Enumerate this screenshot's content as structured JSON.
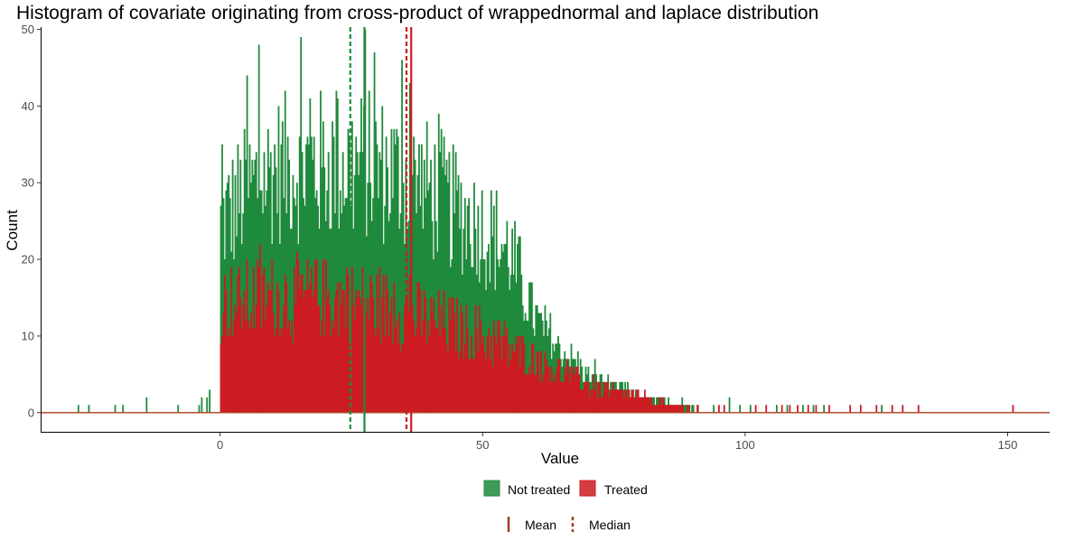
{
  "chart_data": {
    "type": "bar",
    "title": "Histogram of covariate originating from cross-product of wrappednormal and laplace distribution",
    "xlabel": "Value",
    "ylabel": "Count",
    "xlim": [
      -34,
      158
    ],
    "ylim": [
      -2.5,
      50.3
    ],
    "x_ticks": [
      0,
      50,
      100,
      150
    ],
    "y_ticks": [
      0,
      10,
      20,
      30,
      40,
      50
    ],
    "bin_width": 0.25,
    "grid": false,
    "legend_position": "bottom",
    "legend_fill": {
      "entries": [
        {
          "name": "Not treated",
          "color": "#1f8a3c"
        },
        {
          "name": "Treated",
          "color": "#cc1c22"
        }
      ]
    },
    "legend_lines": {
      "entries": [
        {
          "name": "Mean",
          "style": "solid"
        },
        {
          "name": "Median",
          "style": "dashed"
        }
      ]
    },
    "series": [
      {
        "name": "Not treated",
        "color": "#1f8a3c",
        "baseline_range": [
          -34,
          158
        ],
        "density": [
          [
            0,
            25
          ],
          [
            10,
            32
          ],
          [
            20,
            32
          ],
          [
            30,
            32
          ],
          [
            40,
            29
          ],
          [
            50,
            24
          ],
          [
            55,
            21
          ],
          [
            60,
            12
          ],
          [
            65,
            8
          ],
          [
            70,
            5
          ],
          [
            80,
            2
          ],
          [
            90,
            0.5
          ],
          [
            100,
            0
          ]
        ],
        "peaks": [
          [
            7.3,
            48
          ],
          [
            27.5,
            50
          ],
          [
            34.5,
            46
          ],
          [
            36,
            43
          ],
          [
            41.5,
            39
          ],
          [
            22,
            42
          ],
          [
            17,
            41
          ],
          [
            5,
            44
          ]
        ],
        "outliers": [
          [
            -27,
            1
          ],
          [
            -25,
            1
          ],
          [
            -20,
            1
          ],
          [
            -18.5,
            1
          ],
          [
            -14,
            2
          ],
          [
            -8,
            1
          ],
          [
            -4,
            1
          ],
          [
            -3.5,
            2
          ],
          [
            -2.5,
            2
          ],
          [
            -2,
            3
          ],
          [
            86,
            1
          ],
          [
            88,
            2
          ],
          [
            91,
            1
          ],
          [
            94,
            1
          ],
          [
            97,
            2
          ],
          [
            99,
            1
          ],
          [
            101,
            1
          ],
          [
            106,
            1
          ],
          [
            108,
            1
          ],
          [
            111,
            1
          ],
          [
            113,
            1
          ],
          [
            115,
            1
          ],
          [
            126,
            1
          ]
        ]
      },
      {
        "name": "Treated",
        "color": "#cc1c22",
        "baseline_range": [
          -34,
          158
        ],
        "density": [
          [
            0,
            14
          ],
          [
            10,
            15
          ],
          [
            20,
            15
          ],
          [
            30,
            14
          ],
          [
            40,
            12
          ],
          [
            50,
            10
          ],
          [
            60,
            7
          ],
          [
            70,
            3.5
          ],
          [
            80,
            2
          ],
          [
            85,
            1
          ],
          [
            90,
            0.4
          ],
          [
            100,
            0
          ]
        ],
        "peaks": [
          [
            7.5,
            22
          ],
          [
            18,
            20
          ],
          [
            24,
            19
          ],
          [
            33,
            17
          ],
          [
            36,
            18
          ],
          [
            42,
            14
          ],
          [
            53,
            12
          ],
          [
            61,
            8
          ],
          [
            66,
            7
          ],
          [
            71,
            5
          ]
        ],
        "outliers": [
          [
            82,
            2
          ],
          [
            84,
            1
          ],
          [
            87,
            1
          ],
          [
            89,
            1
          ],
          [
            91,
            1
          ],
          [
            95,
            1
          ],
          [
            96,
            1
          ],
          [
            102,
            1
          ],
          [
            104,
            1
          ],
          [
            107,
            1
          ],
          [
            108.5,
            1
          ],
          [
            110,
            1
          ],
          [
            112,
            1
          ],
          [
            113.5,
            1
          ],
          [
            116,
            1
          ],
          [
            120,
            1
          ],
          [
            122,
            1
          ],
          [
            125,
            1
          ],
          [
            128,
            1
          ],
          [
            130,
            1
          ],
          [
            133,
            1
          ],
          [
            151,
            1
          ]
        ]
      }
    ],
    "reference_lines": [
      {
        "series": "Not treated",
        "kind": "Mean",
        "x": 27.5,
        "color": "#1f8a3c",
        "style": "solid"
      },
      {
        "series": "Not treated",
        "kind": "Median",
        "x": 24.8,
        "color": "#1f8a3c",
        "style": "dashed"
      },
      {
        "series": "Treated",
        "kind": "Mean",
        "x": 36.4,
        "color": "#cc1c22",
        "style": "solid"
      },
      {
        "series": "Treated",
        "kind": "Median",
        "x": 35.5,
        "color": "#cc1c22",
        "style": "dashed"
      }
    ],
    "legend_line_color": "#a33a2a"
  }
}
